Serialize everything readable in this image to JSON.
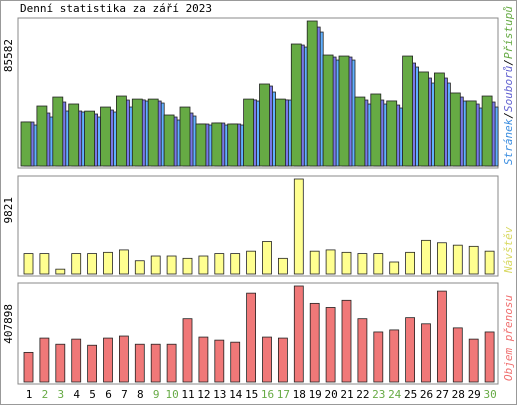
{
  "chart_data": [
    {
      "type": "bar",
      "title": "Denní statistika za září 2023",
      "legend_separator": "/",
      "ylim": [
        0,
        85582
      ],
      "yticks": [
        85582
      ],
      "series": [
        {
          "name": "Stránek",
          "color": "#60b0ff",
          "label_color": "#3c8ee0",
          "values": [
            24190,
            28910,
            32450,
            31860,
            28910,
            31860,
            34810,
            38350,
            37170,
            27140,
            29500,
            24190,
            24190,
            24190,
            38350,
            43660,
            38940,
            70210,
            79060,
            62540,
            62540,
            36580,
            36580,
            34220,
            58410,
            48970,
            48970,
            38350,
            34220,
            34810
          ]
        },
        {
          "name": "Souborů",
          "color": "#7878e8",
          "label_color": "#6060d0",
          "values": [
            25960,
            31270,
            37760,
            32450,
            30680,
            33040,
            38940,
            39000,
            38350,
            28910,
            31270,
            24780,
            25370,
            24780,
            39000,
            47200,
            39000,
            71390,
            82010,
            64310,
            64310,
            38940,
            38940,
            35990,
            60770,
            51920,
            51920,
            40710,
            36580,
            37760
          ]
        },
        {
          "name": "Přístupů",
          "color": "#66aa44",
          "label_color": "#66aa44",
          "values": [
            26000,
            35400,
            40700,
            36600,
            32400,
            34800,
            41300,
            39500,
            39500,
            30100,
            34800,
            24800,
            25400,
            24800,
            39500,
            48400,
            39500,
            72000,
            85582,
            65500,
            64900,
            40700,
            42500,
            38400,
            64900,
            55500,
            54900,
            43100,
            38400,
            41300
          ]
        }
      ]
    },
    {
      "type": "bar",
      "ylim": [
        0,
        9821
      ],
      "yticks": [
        9821
      ],
      "series": [
        {
          "name": "Návštěv",
          "color": "#ffff90",
          "label_color": "#d8d860",
          "values": [
            2110,
            2110,
            500,
            2110,
            2110,
            2240,
            2490,
            1370,
            1860,
            1860,
            1620,
            1860,
            2110,
            2110,
            2360,
            3360,
            1620,
            9821,
            2360,
            2490,
            2240,
            2110,
            2110,
            1240,
            2240,
            3480,
            3230,
            2980,
            2860,
            2360
          ]
        }
      ]
    },
    {
      "type": "bar",
      "ylim": [
        0,
        407898
      ],
      "yticks": [
        407898
      ],
      "categories": [
        "1",
        "2",
        "3",
        "4",
        "5",
        "6",
        "7",
        "8",
        "9",
        "10",
        "11",
        "12",
        "13",
        "14",
        "15",
        "16",
        "17",
        "18",
        "19",
        "20",
        "21",
        "22",
        "23",
        "24",
        "25",
        "26",
        "27",
        "28",
        "29",
        "30"
      ],
      "category_colors": [
        "#000",
        "#66aa44",
        "#66aa44",
        "#000",
        "#000",
        "#000",
        "#000",
        "#000",
        "#66aa44",
        "#66aa44",
        "#000",
        "#000",
        "#000",
        "#000",
        "#000",
        "#66aa44",
        "#66aa44",
        "#000",
        "#000",
        "#000",
        "#000",
        "#000",
        "#66aa44",
        "#66aa44",
        "#000",
        "#000",
        "#000",
        "#000",
        "#000",
        "#66aa44"
      ],
      "series": [
        {
          "name": "Objem přenosu",
          "color": "#f07878",
          "label_color": "#f07070",
          "values": [
            125800,
            186600,
            160500,
            182200,
            156200,
            186600,
            195300,
            160500,
            160500,
            160500,
            269000,
            190900,
            177900,
            169200,
            377500,
            190900,
            186600,
            407898,
            334100,
            316700,
            347100,
            269000,
            212600,
            221300,
            273400,
            247300,
            386200,
            230000,
            182200,
            212600
          ]
        }
      ]
    }
  ]
}
